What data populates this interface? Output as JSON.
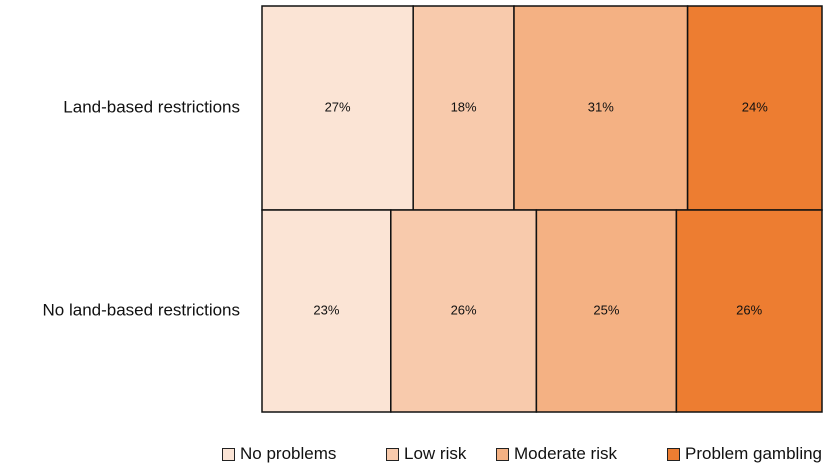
{
  "chart_data": {
    "type": "bar",
    "stacked": "100%",
    "orientation": "horizontal",
    "style": "mosaic",
    "title": "",
    "xlabel": "",
    "ylabel": "",
    "grid": false,
    "legend_position": "bottom",
    "categories": [
      "Land-based restrictions",
      "No land-based restrictions"
    ],
    "series": [
      {
        "name": "No problems",
        "color": "#fbe4d5",
        "values": [
          27,
          23
        ],
        "labels": [
          "27%",
          "23%"
        ]
      },
      {
        "name": "Low risk",
        "color": "#f8caac",
        "values": [
          18,
          26
        ],
        "labels": [
          "18%",
          "26%"
        ]
      },
      {
        "name": "Moderate risk",
        "color": "#f4b183",
        "values": [
          31,
          25
        ],
        "labels": [
          "31%",
          "25%"
        ]
      },
      {
        "name": "Problem gambling",
        "color": "#ed7d31",
        "values": [
          24,
          26
        ],
        "labels": [
          "24%",
          "26%"
        ]
      }
    ]
  }
}
